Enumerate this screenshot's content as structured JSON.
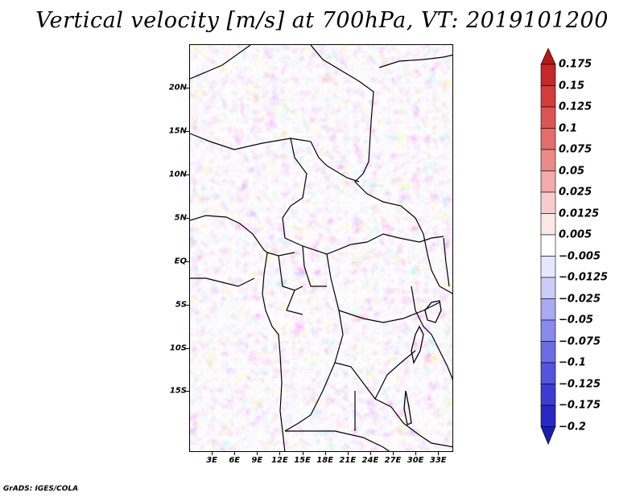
{
  "title": "Vertical velocity [m/s] at 700hPa, VT: 2019101200",
  "credit": "GrADS: IGES/COLA",
  "map": {
    "lon_range": [
      0,
      35
    ],
    "lat_range": [
      -22,
      25
    ],
    "lat_ticks": [
      {
        "value": 20,
        "label": "20N"
      },
      {
        "value": 15,
        "label": "15N"
      },
      {
        "value": 10,
        "label": "10N"
      },
      {
        "value": 5,
        "label": "5N"
      },
      {
        "value": 0,
        "label": "EQ"
      },
      {
        "value": -5,
        "label": "5S"
      },
      {
        "value": -10,
        "label": "10S"
      },
      {
        "value": -15,
        "label": "15S"
      }
    ],
    "lon_ticks": [
      {
        "value": 3,
        "label": "3E"
      },
      {
        "value": 6,
        "label": "6E"
      },
      {
        "value": 9,
        "label": "9E"
      },
      {
        "value": 12,
        "label": "12E"
      },
      {
        "value": 15,
        "label": "15E"
      },
      {
        "value": 18,
        "label": "18E"
      },
      {
        "value": 21,
        "label": "21E"
      },
      {
        "value": 24,
        "label": "24E"
      },
      {
        "value": 27,
        "label": "27E"
      },
      {
        "value": 30,
        "label": "30E"
      },
      {
        "value": 33,
        "label": "33E"
      }
    ]
  },
  "colorbar": {
    "levels": [
      "0.175",
      "0.15",
      "0.125",
      "0.1",
      "0.075",
      "0.05",
      "0.025",
      "0.0125",
      "0.005",
      "−0.005",
      "−0.0125",
      "−0.025",
      "−0.05",
      "−0.075",
      "−0.1",
      "−0.125",
      "−0.175",
      "−0.2"
    ],
    "colors": [
      "#b31b1b",
      "#c42828",
      "#d23c3c",
      "#dc5454",
      "#e46c6c",
      "#ec8a8a",
      "#f2aaaa",
      "#f8cccc",
      "#fce6e6",
      "#ffffff",
      "#e6e6fc",
      "#ccccf8",
      "#aaaaf2",
      "#8a8aec",
      "#6c6ce4",
      "#5454dc",
      "#3c3cd2",
      "#2828c4",
      "#1b1bb3"
    ]
  }
}
